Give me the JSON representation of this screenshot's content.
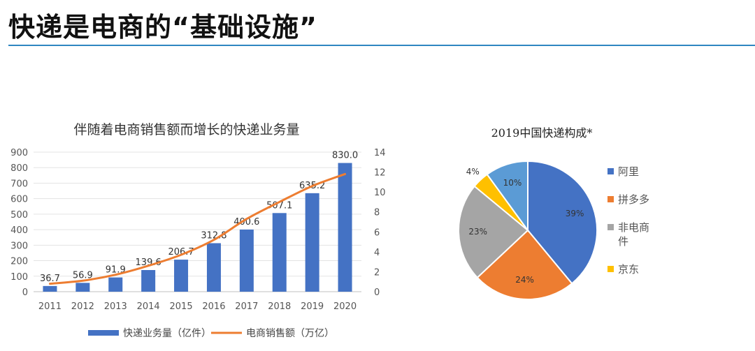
{
  "slide": {
    "title": "快递是电商的“基础设施”",
    "accent_color": "#2e86c1"
  },
  "chart_data": [
    {
      "type": "bar+line",
      "title": "伴随着电商销售额而增长的快递业务量",
      "categories": [
        "2011",
        "2012",
        "2013",
        "2014",
        "2015",
        "2016",
        "2017",
        "2018",
        "2019",
        "2020"
      ],
      "series": [
        {
          "name": "快递业务量（亿件）",
          "type": "bar",
          "axis": "left",
          "color": "#4472c4",
          "values": [
            36.7,
            56.9,
            91.9,
            139.6,
            206.7,
            312.8,
            400.6,
            507.1,
            635.2,
            830.0
          ],
          "labels": [
            "36.7",
            "56.9",
            "91.9",
            "139.6",
            "206.7",
            "312.8",
            "400.6",
            "507.1",
            "635.2",
            "830.0"
          ]
        },
        {
          "name": "电商销售额（万亿）",
          "type": "line",
          "axis": "right",
          "color": "#ed7d31",
          "values": [
            0.8,
            1.1,
            1.7,
            2.6,
            3.7,
            5.2,
            7.3,
            9.0,
            10.6,
            11.8
          ]
        }
      ],
      "y_left": {
        "min": 0,
        "max": 900,
        "ticks": [
          "0",
          "100",
          "200",
          "300",
          "400",
          "500",
          "600",
          "700",
          "800",
          "900"
        ]
      },
      "y_right": {
        "min": 0,
        "max": 14,
        "ticks": [
          "0",
          "2",
          "4",
          "6",
          "8",
          "10",
          "12",
          "14"
        ]
      },
      "grid": true,
      "legend": "bottom"
    },
    {
      "type": "pie",
      "title": "2019中国快递构成*",
      "slices": [
        {
          "name": "阿里",
          "value": 39,
          "label": "39%",
          "color": "#4472c4"
        },
        {
          "name": "拼多多",
          "value": 24,
          "label": "24%",
          "color": "#ed7d31"
        },
        {
          "name": "非电商件",
          "value": 23,
          "label": "23%",
          "color": "#a5a5a5",
          "legend_lines": [
            "非电商",
            "件"
          ]
        },
        {
          "name": "京东",
          "value": 4,
          "label": "4%",
          "color": "#ffc000"
        },
        {
          "name": "",
          "value": 10,
          "label": "10%",
          "color": "#5b9bd5"
        }
      ],
      "legend": "right"
    }
  ]
}
